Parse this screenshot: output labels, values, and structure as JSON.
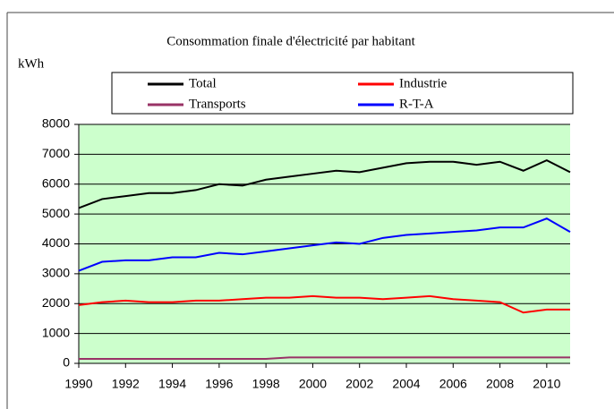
{
  "chart_data": {
    "type": "line",
    "title": "Consommation finale d'électricité par habitant",
    "y_label": "kWh",
    "x": [
      1990,
      1991,
      1992,
      1993,
      1994,
      1995,
      1996,
      1997,
      1998,
      1999,
      2000,
      2001,
      2002,
      2003,
      2004,
      2005,
      2006,
      2007,
      2008,
      2009,
      2010,
      2011
    ],
    "series": [
      {
        "name": "Total",
        "color": "#000000",
        "values": [
          5200,
          5500,
          5600,
          5700,
          5700,
          5800,
          6000,
          5950,
          6150,
          6250,
          6350,
          6450,
          6400,
          6550,
          6700,
          6750,
          6750,
          6650,
          6750,
          6450,
          6800,
          6400
        ]
      },
      {
        "name": "Industrie",
        "color": "#ff0000",
        "values": [
          1950,
          2050,
          2100,
          2050,
          2050,
          2100,
          2100,
          2150,
          2200,
          2200,
          2250,
          2200,
          2200,
          2150,
          2200,
          2250,
          2150,
          2100,
          2050,
          1700,
          1800,
          1800
        ]
      },
      {
        "name": "Transports",
        "color": "#993366",
        "values": [
          150,
          150,
          150,
          150,
          150,
          150,
          150,
          150,
          150,
          200,
          200,
          200,
          200,
          200,
          200,
          200,
          200,
          200,
          200,
          200,
          200,
          200
        ]
      },
      {
        "name": "R-T-A",
        "color": "#0000ff",
        "values": [
          3100,
          3400,
          3450,
          3450,
          3550,
          3550,
          3700,
          3650,
          3750,
          3850,
          3950,
          4050,
          4000,
          4200,
          4300,
          4350,
          4400,
          4450,
          4550,
          4550,
          4850,
          4400
        ]
      }
    ],
    "xlim": [
      1990,
      2011
    ],
    "xticks": [
      1990,
      1992,
      1994,
      1996,
      1998,
      2000,
      2002,
      2004,
      2006,
      2008,
      2010
    ],
    "ylim": [
      0,
      8000
    ],
    "yticks": [
      0,
      1000,
      2000,
      3000,
      4000,
      5000,
      6000,
      7000,
      8000
    ],
    "grid": true,
    "plot_background": "#ccffcc"
  }
}
